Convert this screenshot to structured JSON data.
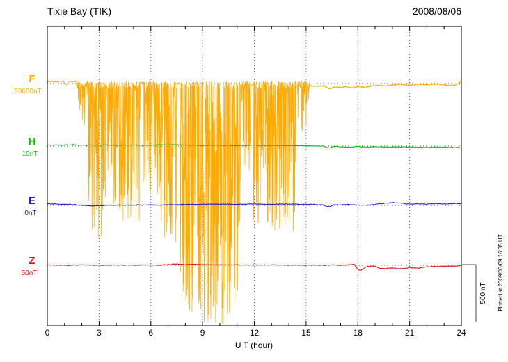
{
  "chart_data": {
    "type": "line",
    "title": "Tixie Bay (TIK)",
    "date": "2008/08/06",
    "xlabel": "U T (hour)",
    "ylabel": "",
    "x_range": [
      0,
      24
    ],
    "x_ticks": [
      0,
      3,
      6,
      9,
      12,
      15,
      18,
      21,
      24
    ],
    "grid": "dotted vertical lines every 3 hours, dotted horizontal baseline per trace",
    "scale_bar": {
      "label": "500 nT",
      "nT": 500
    },
    "plotted_at": "Plotted at 2009/03/09 16:35 UT",
    "series": [
      {
        "id": "F",
        "label": "F",
        "baseline_label": "59680nT",
        "baseline_nT": 59680,
        "color": "#FFAA00",
        "points": [
          [
            0,
            18
          ],
          [
            0.3,
            20
          ],
          [
            0.6,
            15
          ],
          [
            0.9,
            22
          ],
          [
            1.1,
            -10
          ],
          [
            1.3,
            20
          ],
          [
            1.6,
            18
          ],
          [
            15.3,
            -20
          ],
          [
            15.6,
            -26
          ],
          [
            16,
            -18
          ],
          [
            16.35,
            -46
          ],
          [
            16.7,
            -30
          ],
          [
            17,
            -36
          ],
          [
            17.3,
            -26
          ],
          [
            17.6,
            -40
          ],
          [
            18,
            -28
          ],
          [
            18.4,
            -34
          ],
          [
            18.8,
            -20
          ],
          [
            19.2,
            -16
          ],
          [
            19.6,
            -22
          ],
          [
            20,
            -12
          ],
          [
            20.5,
            -8
          ],
          [
            21,
            -14
          ],
          [
            21.5,
            -6
          ],
          [
            22,
            -10
          ],
          [
            22.5,
            -4
          ],
          [
            23,
            -12
          ],
          [
            23.5,
            -18
          ],
          [
            23.8,
            -4
          ],
          [
            24,
            24
          ]
        ],
        "noise_bursts": [
          [
            1.7,
            2.4,
            400,
            0.5,
            1.4
          ],
          [
            2.4,
            3.3,
            1350,
            0.62,
            1.2
          ],
          [
            3.3,
            4.3,
            1150,
            0.62,
            1.3
          ],
          [
            4.3,
            5.4,
            1280,
            0.6,
            1.2
          ],
          [
            5.6,
            6.4,
            950,
            0.6,
            1.3
          ],
          [
            6.4,
            7.5,
            1380,
            0.62,
            1.2
          ],
          [
            7.7,
            9.0,
            2050,
            0.75,
            0.9
          ],
          [
            9.0,
            10.2,
            2120,
            0.8,
            0.85
          ],
          [
            10.2,
            11.2,
            2040,
            0.72,
            0.95
          ],
          [
            11.2,
            11.8,
            950,
            0.5,
            1.3
          ],
          [
            11.95,
            13.2,
            1280,
            0.65,
            1.1
          ],
          [
            13.2,
            14.4,
            1320,
            0.62,
            1.15
          ],
          [
            14.5,
            15.2,
            450,
            0.35,
            1.5
          ]
        ]
      },
      {
        "id": "H",
        "label": "H",
        "baseline_label": "10nT",
        "baseline_nT": 10,
        "color": "#00C400",
        "points": [
          [
            0,
            8
          ],
          [
            0.5,
            10
          ],
          [
            1,
            9
          ],
          [
            1.5,
            11
          ],
          [
            2,
            7
          ],
          [
            2.5,
            9
          ],
          [
            3,
            8
          ],
          [
            3.5,
            10
          ],
          [
            4,
            6
          ],
          [
            4.5,
            8
          ],
          [
            5,
            9
          ],
          [
            5.5,
            7
          ],
          [
            6,
            8
          ],
          [
            6.5,
            11
          ],
          [
            7,
            9
          ],
          [
            7.5,
            12
          ],
          [
            8,
            9
          ],
          [
            8.5,
            7
          ],
          [
            9,
            6
          ],
          [
            9.5,
            7
          ],
          [
            10,
            6
          ],
          [
            10.5,
            5
          ],
          [
            11,
            5
          ],
          [
            11.5,
            6
          ],
          [
            12,
            8
          ],
          [
            12.5,
            6
          ],
          [
            13,
            5
          ],
          [
            13.5,
            6
          ],
          [
            14,
            5
          ],
          [
            14.5,
            4
          ],
          [
            15,
            3
          ],
          [
            15.5,
            2
          ],
          [
            16,
            0
          ],
          [
            16.3,
            -18
          ],
          [
            16.6,
            -4
          ],
          [
            17,
            -6
          ],
          [
            17.5,
            -10
          ],
          [
            18,
            -5
          ],
          [
            18.5,
            -9
          ],
          [
            19,
            -6
          ],
          [
            19.5,
            -8
          ],
          [
            20,
            -9
          ],
          [
            20.5,
            -6
          ],
          [
            21,
            -7
          ],
          [
            21.5,
            -9
          ],
          [
            22,
            -11
          ],
          [
            22.5,
            -8
          ],
          [
            23,
            -9
          ],
          [
            23.5,
            -11
          ],
          [
            24,
            -13
          ]
        ]
      },
      {
        "id": "E",
        "label": "E",
        "baseline_label": "0nT",
        "baseline_nT": 0,
        "color": "#2020CC",
        "points": [
          [
            0,
            14
          ],
          [
            0.5,
            12
          ],
          [
            1,
            10
          ],
          [
            1.5,
            7
          ],
          [
            2,
            1
          ],
          [
            2.5,
            -4
          ],
          [
            3,
            -2
          ],
          [
            3.5,
            1
          ],
          [
            4,
            3
          ],
          [
            4.5,
            2
          ],
          [
            5,
            3
          ],
          [
            5.5,
            4
          ],
          [
            6,
            5
          ],
          [
            6.5,
            3
          ],
          [
            7,
            5
          ],
          [
            7.5,
            6
          ],
          [
            8,
            8
          ],
          [
            8.5,
            9
          ],
          [
            9,
            10
          ],
          [
            9.5,
            11
          ],
          [
            10,
            12
          ],
          [
            10.5,
            11
          ],
          [
            11,
            10
          ],
          [
            11.5,
            11
          ],
          [
            12,
            12
          ],
          [
            12.5,
            11
          ],
          [
            13,
            10
          ],
          [
            13.5,
            11
          ],
          [
            14,
            12
          ],
          [
            14.5,
            11
          ],
          [
            15,
            10
          ],
          [
            15.5,
            8
          ],
          [
            16,
            4
          ],
          [
            16.3,
            -14
          ],
          [
            16.6,
            4
          ],
          [
            17,
            6
          ],
          [
            17.5,
            8
          ],
          [
            18,
            5
          ],
          [
            18.5,
            2
          ],
          [
            19,
            9
          ],
          [
            19.5,
            18
          ],
          [
            20,
            24
          ],
          [
            20.5,
            20
          ],
          [
            21,
            12
          ],
          [
            21.5,
            15
          ],
          [
            22,
            12
          ],
          [
            22.5,
            15
          ],
          [
            23,
            13
          ],
          [
            23.5,
            17
          ],
          [
            24,
            15
          ]
        ]
      },
      {
        "id": "Z",
        "label": "Z",
        "baseline_label": "50nT",
        "baseline_nT": 50,
        "color": "#DD1111",
        "points": [
          [
            0,
            2
          ],
          [
            0.5,
            1
          ],
          [
            1,
            0
          ],
          [
            1.5,
            2
          ],
          [
            2,
            3
          ],
          [
            2.5,
            1
          ],
          [
            3,
            0
          ],
          [
            3.5,
            2
          ],
          [
            4,
            2
          ],
          [
            4.5,
            1
          ],
          [
            5,
            0
          ],
          [
            5.5,
            2
          ],
          [
            6,
            3
          ],
          [
            6.5,
            0
          ],
          [
            7,
            6
          ],
          [
            7.5,
            11
          ],
          [
            8,
            5
          ],
          [
            8.5,
            8
          ],
          [
            9,
            5
          ],
          [
            9.5,
            4
          ],
          [
            10,
            3
          ],
          [
            10.5,
            4
          ],
          [
            11,
            5
          ],
          [
            11.5,
            3
          ],
          [
            12,
            2
          ],
          [
            12.5,
            3
          ],
          [
            13,
            3
          ],
          [
            13.5,
            2
          ],
          [
            14,
            2
          ],
          [
            14.5,
            1
          ],
          [
            15,
            0
          ],
          [
            15.5,
            2
          ],
          [
            16,
            0
          ],
          [
            16.5,
            3
          ],
          [
            17,
            0
          ],
          [
            17.5,
            4
          ],
          [
            17.8,
            8
          ],
          [
            18,
            -38
          ],
          [
            18.2,
            -44
          ],
          [
            18.5,
            -14
          ],
          [
            18.8,
            -8
          ],
          [
            19,
            -10
          ],
          [
            19.3,
            -26
          ],
          [
            19.6,
            -30
          ],
          [
            20,
            -24
          ],
          [
            20.5,
            -30
          ],
          [
            21,
            -20
          ],
          [
            21.5,
            -26
          ],
          [
            22,
            -14
          ],
          [
            22.5,
            -10
          ],
          [
            23,
            -8
          ],
          [
            23.5,
            -6
          ],
          [
            24,
            -5
          ]
        ]
      }
    ]
  }
}
